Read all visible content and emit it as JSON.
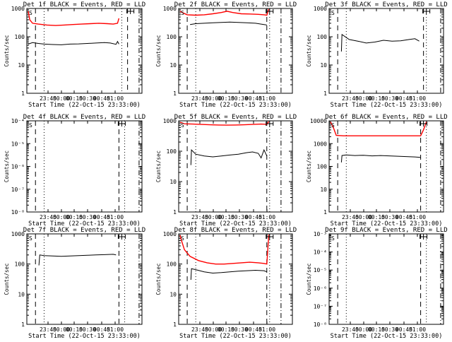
{
  "chart_data": [
    {
      "type": "line",
      "title": "Det 1f BLACK = Events, RED = LLD",
      "xlabel": "Start Time (22-Oct-15 23:33:00)",
      "ylabel": "Counts/sec",
      "y_scale": "log",
      "ylim": [
        1,
        1000
      ],
      "xlim_min": [
        0,
        40
      ],
      "ytick_labels": [
        "1",
        "10",
        "100",
        "1000"
      ],
      "xtick_labels": [
        "23:45",
        "00:00",
        "00:15",
        "00:30",
        "00:45",
        "01:00"
      ],
      "marker_label": "S",
      "vlines_dashed_min": [
        3,
        35
      ],
      "vlines_dotted_min": [
        6,
        33
      ],
      "vlines_dashdot_min": [
        39
      ],
      "series": [
        {
          "color": "#000000",
          "x": [
            0.5,
            2,
            3,
            4,
            6,
            9,
            12,
            15,
            18,
            21,
            24,
            27,
            29,
            31,
            31.5,
            32
          ],
          "y": [
            55,
            62,
            60,
            58,
            55,
            53,
            52,
            55,
            56,
            58,
            60,
            62,
            60,
            54,
            68,
            55
          ]
        },
        {
          "color": "#ff0000",
          "x": [
            0.5,
            1,
            2,
            4,
            7,
            10,
            13,
            16,
            19,
            22,
            25,
            28,
            30,
            31.5,
            32
          ],
          "y": [
            800,
            400,
            300,
            280,
            260,
            250,
            260,
            270,
            280,
            290,
            300,
            290,
            280,
            300,
            450
          ]
        }
      ]
    },
    {
      "type": "line",
      "title": "Det 2f BLACK = Events, RED = LLD",
      "xlabel": "Start Time (22-Oct-15 23:33:00)",
      "ylabel": "Counts/sec",
      "y_scale": "log",
      "ylim": [
        1,
        1000
      ],
      "xlim_min": [
        0,
        40
      ],
      "ytick_labels": [
        "1",
        "10",
        "100",
        "1000"
      ],
      "xtick_labels": [
        "23:45",
        "00:00",
        "00:15",
        "00:30",
        "00:45",
        "01:00"
      ],
      "marker_label": "S",
      "vlines_dashed_min": [
        3,
        31
      ],
      "vlines_dotted_min": [
        6,
        32
      ],
      "vlines_dashdot_min": [
        36
      ],
      "series": [
        {
          "color": "#000000",
          "x": [
            4,
            5,
            6,
            9,
            12,
            15,
            18,
            21,
            24,
            27,
            29,
            31
          ],
          "y": [
            270,
            280,
            290,
            300,
            310,
            320,
            330,
            320,
            310,
            300,
            280,
            260
          ]
        },
        {
          "color": "#ff0000",
          "x": [
            0.5,
            1.5,
            3,
            6,
            9,
            12,
            15,
            17,
            19,
            22,
            25,
            28,
            30,
            31,
            31.7
          ],
          "y": [
            800,
            700,
            600,
            580,
            600,
            650,
            720,
            800,
            720,
            650,
            640,
            620,
            600,
            580,
            950
          ]
        }
      ]
    },
    {
      "type": "line",
      "title": "Det 3f BLACK = Events, RED = LLD",
      "xlabel": "Start Time (22-Oct-15 23:33:00)",
      "ylabel": "Counts/sec",
      "y_scale": "log",
      "ylim": [
        1,
        1000
      ],
      "xlim_min": [
        0,
        40
      ],
      "ytick_labels": [
        "1",
        "10",
        "100",
        "1000"
      ],
      "xtick_labels": [
        "23:45",
        "00:00",
        "00:15",
        "00:30",
        "00:45",
        "01:00"
      ],
      "marker_label": "S",
      "vlines_dashed_min": [
        3,
        33
      ],
      "vlines_dotted_min": [
        6,
        34
      ],
      "vlines_dashdot_min": [
        39
      ],
      "series": [
        {
          "color": "#000000",
          "x": [
            4.3,
            4.5,
            7,
            10,
            13,
            16,
            19,
            22,
            25,
            28,
            30,
            31.5
          ],
          "y": [
            30,
            120,
            80,
            70,
            60,
            65,
            75,
            70,
            72,
            80,
            85,
            70
          ]
        }
      ]
    },
    {
      "type": "line",
      "title": "Det 4f BLACK = Events, RED = LLD",
      "xlabel": "Start Time (22-Oct-15 23:33:00)",
      "ylabel": "Counts/sec",
      "y_scale": "log",
      "ylim": [
        1e-08,
        0.0001
      ],
      "xlim_min": [
        0,
        40
      ],
      "ytick_labels": [
        "10⁻⁸",
        "10⁻⁷",
        "10⁻⁶",
        "10⁻⁵",
        "10⁻⁴"
      ],
      "xtick_labels": [
        "23:45",
        "00:00",
        "00:15",
        "00:30",
        "00:45",
        "01:00"
      ],
      "marker_label": "S",
      "vlines_dashed_min": [
        3,
        32
      ],
      "vlines_dotted_min": [
        6,
        34
      ],
      "vlines_dashdot_min": [
        39
      ],
      "series": []
    },
    {
      "type": "line",
      "title": "Det 5f BLACK = Events, RED = LLD",
      "xlabel": "Start Time (22-Oct-15 23:33:00)",
      "ylabel": "Counts/sec",
      "y_scale": "log",
      "ylim": [
        1,
        1000
      ],
      "xlim_min": [
        0,
        40
      ],
      "ytick_labels": [
        "1",
        "10",
        "100",
        "1000"
      ],
      "xtick_labels": [
        "23:45",
        "00:00",
        "00:15",
        "00:30",
        "00:45",
        "01:00"
      ],
      "marker_label": "S",
      "vlines_dashed_min": [
        3,
        31
      ],
      "vlines_dotted_min": [
        6,
        32
      ],
      "vlines_dashdot_min": [
        36
      ],
      "series": [
        {
          "color": "#000000",
          "x": [
            4.3,
            4.5,
            6,
            9,
            12,
            15,
            18,
            21,
            24,
            26,
            28,
            29,
            30,
            31
          ],
          "y": [
            35,
            110,
            80,
            70,
            65,
            70,
            75,
            80,
            90,
            95,
            85,
            60,
            110,
            70
          ]
        },
        {
          "color": "#ff0000",
          "x": [
            0.5,
            2,
            5,
            8,
            11,
            14,
            17,
            20,
            23,
            26,
            29,
            31,
            31.7
          ],
          "y": [
            900,
            800,
            780,
            760,
            740,
            730,
            720,
            730,
            740,
            760,
            780,
            770,
            950
          ]
        }
      ]
    },
    {
      "type": "line",
      "title": "Det 6f BLACK = Events, RED = LLD",
      "xlabel": "Start Time (22-Oct-15 23:33:00)",
      "ylabel": "Counts/sec",
      "y_scale": "log",
      "ylim": [
        1,
        10000
      ],
      "xlim_min": [
        0,
        40
      ],
      "ytick_labels": [
        "1",
        "10",
        "100",
        "1000",
        "10000"
      ],
      "xtick_labels": [
        "23:45",
        "00:00",
        "00:15",
        "00:30",
        "00:45",
        "01:00"
      ],
      "marker_label": "S",
      "vlines_dashed_min": [
        3,
        32
      ],
      "vlines_dotted_min": [
        6,
        34
      ],
      "vlines_dashdot_min": [
        39
      ],
      "series": [
        {
          "color": "#000000",
          "x": [
            4.3,
            4.5,
            6,
            9,
            12,
            15,
            18,
            21,
            24,
            27,
            30,
            32
          ],
          "y": [
            150,
            300,
            320,
            300,
            310,
            290,
            300,
            290,
            280,
            270,
            260,
            250
          ]
        },
        {
          "color": "#ff0000",
          "x": [
            0.5,
            1.5,
            2.5,
            5,
            10,
            15,
            20,
            25,
            30,
            32,
            33,
            34
          ],
          "y": [
            9000,
            5000,
            2300,
            2200,
            2200,
            2200,
            2200,
            2200,
            2200,
            2200,
            4000,
            9000
          ]
        }
      ]
    },
    {
      "type": "line",
      "title": "Det 7f BLACK = Events, RED = LLD",
      "xlabel": "Start Time (22-Oct-15 23:33:00)",
      "ylabel": "Counts/sec",
      "y_scale": "log",
      "ylim": [
        1,
        1000
      ],
      "xlim_min": [
        0,
        40
      ],
      "ytick_labels": [
        "1",
        "10",
        "100",
        "1000"
      ],
      "xtick_labels": [
        "23:45",
        "00:00",
        "00:15",
        "00:30",
        "00:45",
        "01:00"
      ],
      "marker_label": "S",
      "vlines_dashed_min": [
        3,
        32
      ],
      "vlines_dotted_min": [
        6,
        34
      ],
      "vlines_dashdot_min": [
        39
      ],
      "series": [
        {
          "color": "#000000",
          "x": [
            4.2,
            4.5,
            6,
            9,
            12,
            15,
            18,
            21,
            24,
            27,
            30,
            31
          ],
          "y": [
            90,
            200,
            190,
            185,
            180,
            185,
            190,
            195,
            200,
            205,
            210,
            200
          ]
        }
      ]
    },
    {
      "type": "line",
      "title": "Det 8f BLACK = Events, RED = LLD",
      "xlabel": "Start Time (22-Oct-15 23:33:00)",
      "ylabel": "Counts/sec",
      "y_scale": "log",
      "ylim": [
        1,
        1000
      ],
      "xlim_min": [
        0,
        40
      ],
      "ytick_labels": [
        "1",
        "10",
        "100",
        "1000"
      ],
      "xtick_labels": [
        "23:45",
        "00:00",
        "00:15",
        "00:30",
        "00:45",
        "01:00"
      ],
      "marker_label": "S",
      "vlines_dashed_min": [
        3,
        31
      ],
      "vlines_dotted_min": [
        6,
        32
      ],
      "vlines_dashdot_min": [
        36
      ],
      "series": [
        {
          "color": "#000000",
          "x": [
            4.3,
            4.5,
            6,
            9,
            12,
            15,
            18,
            21,
            24,
            27,
            30,
            31
          ],
          "y": [
            30,
            70,
            65,
            55,
            50,
            52,
            55,
            58,
            60,
            62,
            60,
            55
          ]
        },
        {
          "color": "#ff0000",
          "x": [
            0.5,
            1,
            2,
            4,
            7,
            10,
            13,
            16,
            19,
            22,
            25,
            28,
            30,
            31,
            31.7
          ],
          "y": [
            900,
            600,
            300,
            180,
            130,
            110,
            100,
            100,
            105,
            110,
            115,
            110,
            105,
            100,
            950
          ]
        }
      ]
    },
    {
      "type": "line",
      "title": "Det 9f BLACK = Events, RED = LLD",
      "xlabel": "Start Time (22-Oct-15 23:33:00)",
      "ylabel": "Counts/sec",
      "y_scale": "log",
      "ylim": [
        1e-08,
        0.001
      ],
      "xlim_min": [
        0,
        40
      ],
      "ytick_labels": [
        "10⁻⁸",
        "10⁻⁷",
        "10⁻⁶",
        "10⁻⁵",
        "10⁻⁴",
        "10⁻³"
      ],
      "xtick_labels": [
        "23:45",
        "00:00",
        "00:15",
        "00:30",
        "00:45",
        "01:00"
      ],
      "marker_label": "S",
      "vlines_dashed_min": [
        3,
        32
      ],
      "vlines_dotted_min": [
        6,
        34
      ],
      "vlines_dashdot_min": [
        39
      ],
      "series": []
    }
  ]
}
